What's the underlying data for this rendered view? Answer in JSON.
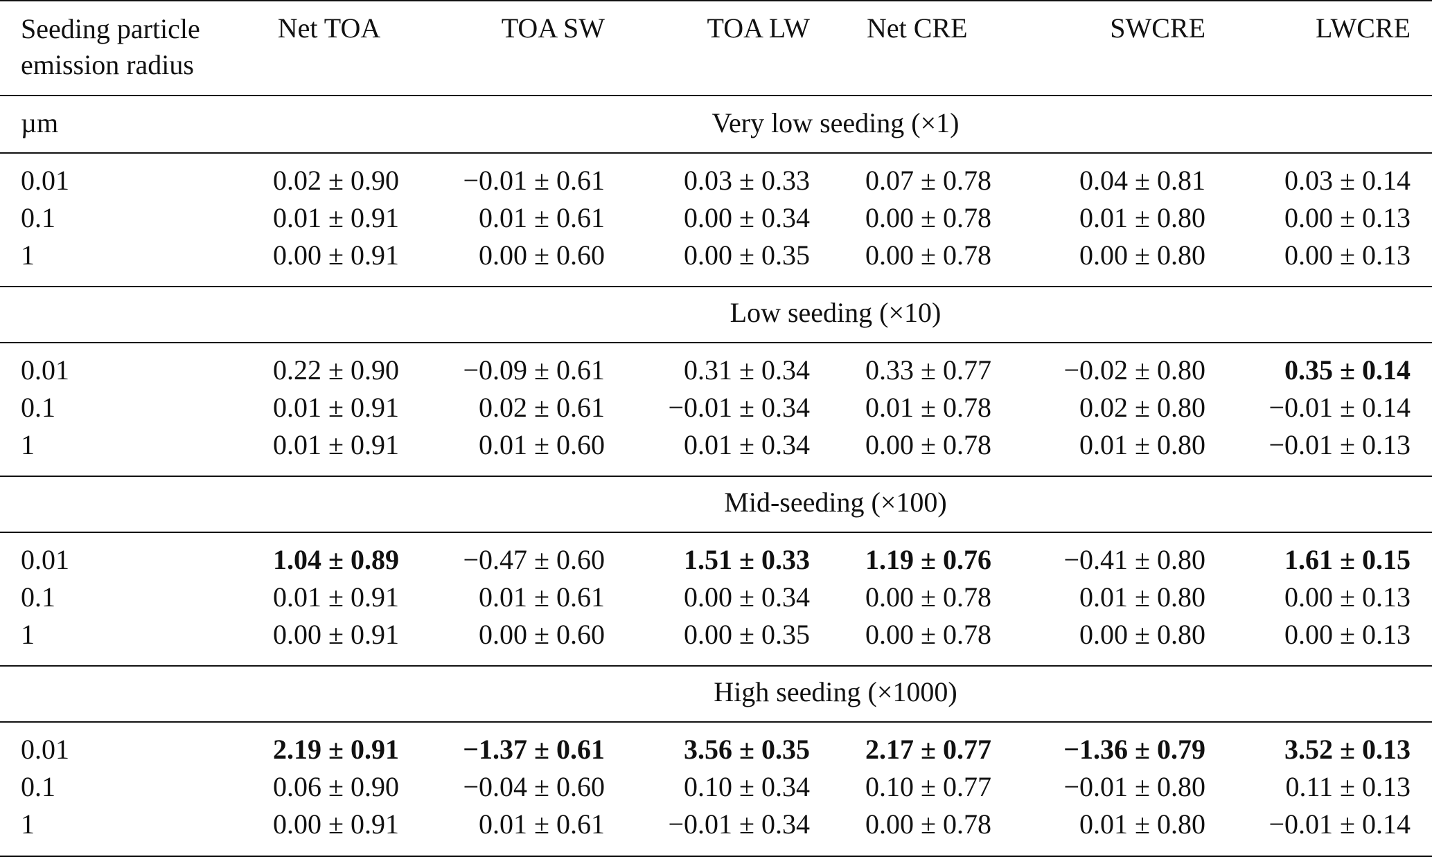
{
  "table": {
    "header": [
      "Seeding particle emission radius",
      "Net TOA",
      "TOA SW",
      "TOA LW",
      "Net CRE",
      "SWCRE",
      "LWCRE"
    ],
    "unit": "µm",
    "sections": [
      {
        "title": "Very low seeding (×1)",
        "rows": [
          [
            "0.01",
            "0.02 ± 0.90",
            "−0.01 ± 0.61",
            "0.03 ± 0.33",
            "0.07 ± 0.78",
            "0.04 ± 0.81",
            "0.03 ± 0.14"
          ],
          [
            "0.1",
            "0.01 ± 0.91",
            "0.01 ± 0.61",
            "0.00 ± 0.34",
            "0.00 ± 0.78",
            "0.01 ± 0.80",
            "0.00 ± 0.13"
          ],
          [
            "1",
            "0.00 ± 0.91",
            "0.00 ± 0.60",
            "0.00 ± 0.35",
            "0.00 ± 0.78",
            "0.00 ± 0.80",
            "0.00 ± 0.13"
          ]
        ]
      },
      {
        "title": "Low seeding (×10)",
        "rows": [
          [
            "0.01",
            "0.22 ± 0.90",
            "−0.09 ± 0.61",
            "0.31 ± 0.34",
            "0.33 ± 0.77",
            "−0.02 ± 0.80",
            {
              "text": "0.35 ± 0.14",
              "bold": true
            }
          ],
          [
            "0.1",
            "0.01 ± 0.91",
            "0.02 ± 0.61",
            "−0.01 ± 0.34",
            "0.01 ± 0.78",
            "0.02 ± 0.80",
            "−0.01 ± 0.14"
          ],
          [
            "1",
            "0.01 ± 0.91",
            "0.01 ± 0.60",
            "0.01 ± 0.34",
            "0.00 ± 0.78",
            "0.01 ± 0.80",
            "−0.01 ± 0.13"
          ]
        ]
      },
      {
        "title": "Mid-seeding (×100)",
        "rows": [
          [
            "0.01",
            {
              "text": "1.04 ± 0.89",
              "bold": true
            },
            "−0.47 ± 0.60",
            {
              "text": "1.51 ± 0.33",
              "bold": true
            },
            {
              "text": "1.19 ± 0.76",
              "bold": true
            },
            "−0.41 ± 0.80",
            {
              "text": "1.61 ± 0.15",
              "bold": true
            }
          ],
          [
            "0.1",
            "0.01 ± 0.91",
            "0.01 ± 0.61",
            "0.00 ± 0.34",
            "0.00 ± 0.78",
            "0.01 ± 0.80",
            "0.00 ± 0.13"
          ],
          [
            "1",
            "0.00 ± 0.91",
            "0.00 ± 0.60",
            "0.00 ± 0.35",
            "0.00 ± 0.78",
            "0.00 ± 0.80",
            "0.00 ± 0.13"
          ]
        ]
      },
      {
        "title": "High seeding (×1000)",
        "rows": [
          [
            "0.01",
            {
              "text": "2.19 ± 0.91",
              "bold": true
            },
            {
              "text": "−1.37 ± 0.61",
              "bold": true
            },
            {
              "text": "3.56 ± 0.35",
              "bold": true
            },
            {
              "text": "2.17 ± 0.77",
              "bold": true
            },
            {
              "text": "−1.36 ± 0.79",
              "bold": true
            },
            {
              "text": "3.52 ± 0.13",
              "bold": true
            }
          ],
          [
            "0.1",
            "0.06 ± 0.90",
            "−0.04 ± 0.60",
            "0.10 ± 0.34",
            "0.10 ± 0.77",
            "−0.01 ± 0.80",
            "0.11 ± 0.13"
          ],
          [
            "1",
            "0.00 ± 0.91",
            "0.01 ± 0.61",
            "−0.01 ± 0.34",
            "0.00 ± 0.78",
            "0.01 ± 0.80",
            "−0.01 ± 0.14"
          ]
        ]
      }
    ]
  }
}
